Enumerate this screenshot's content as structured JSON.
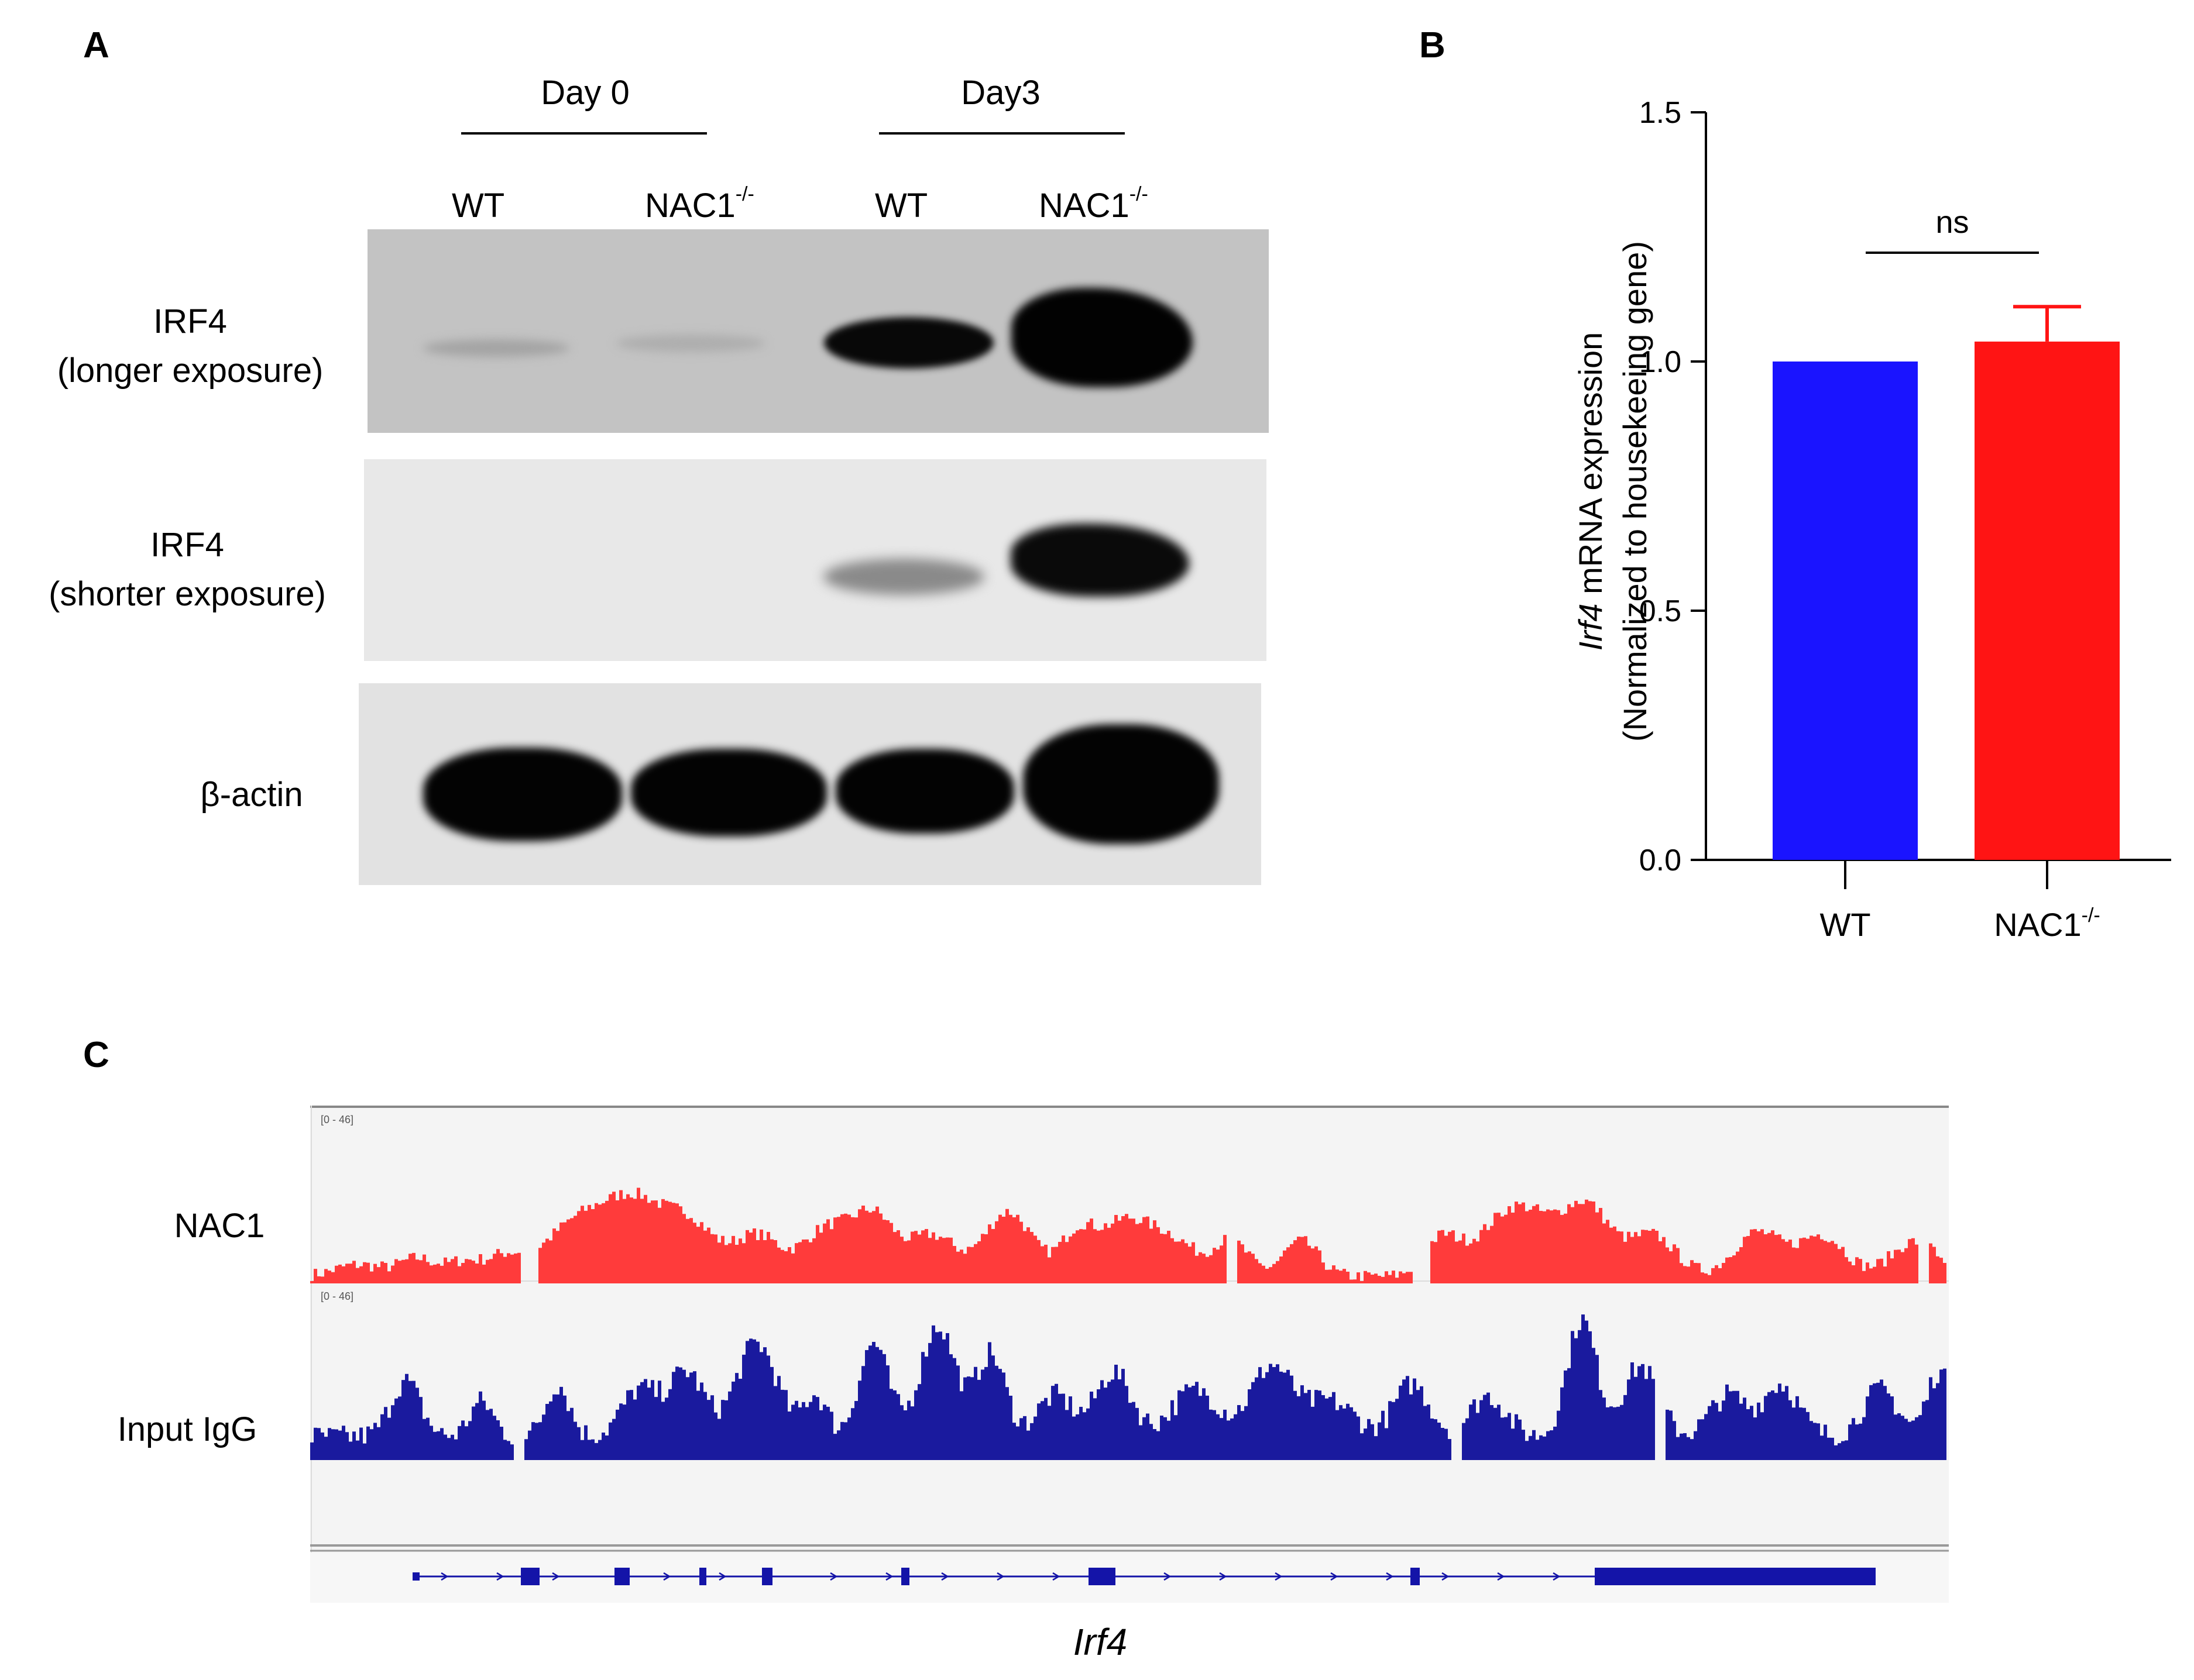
{
  "panels": {
    "a": "A",
    "b": "B",
    "c": "C"
  },
  "panelA": {
    "groups": [
      "Day 0",
      "Day3"
    ],
    "lanes": [
      {
        "name": "WT",
        "sup": ""
      },
      {
        "name": "NAC1",
        "sup": "-/-"
      },
      {
        "name": "WT",
        "sup": ""
      },
      {
        "name": "NAC1",
        "sup": "-/-"
      }
    ],
    "blots": [
      {
        "label1": "IRF4",
        "label2": "(longer exposure)"
      },
      {
        "label1": "IRF4",
        "label2": "(shorter exposure)"
      },
      {
        "label1": "β-actin",
        "label2": ""
      }
    ]
  },
  "chart_data": {
    "type": "bar",
    "categories": [
      "WT",
      "NAC1-/-"
    ],
    "category_display": [
      {
        "name": "WT",
        "sup": ""
      },
      {
        "name": "NAC1",
        "sup": "-/-"
      }
    ],
    "values": [
      1.0,
      1.04
    ],
    "error_upper": [
      0,
      0.07
    ],
    "colors": [
      "#1a14ff",
      "#ff1414"
    ],
    "ylabel_italic": "Irf4",
    "ylabel_rest": " mRNA expression",
    "ylabel_line2": "(Normalized to housekeeing gene)",
    "ylim": [
      0,
      1.5
    ],
    "ytick_labels": [
      "0.0",
      "0.5",
      "1.0",
      "1.5"
    ],
    "significance": "ns"
  },
  "panelC": {
    "tracks": [
      {
        "label": "NAC1",
        "range": "[0 - 46]",
        "color": "#ff3b3b"
      },
      {
        "label": "Input IgG",
        "range": "[0 - 46]",
        "color": "#1a1a9e"
      }
    ],
    "gene": "Irf4"
  }
}
